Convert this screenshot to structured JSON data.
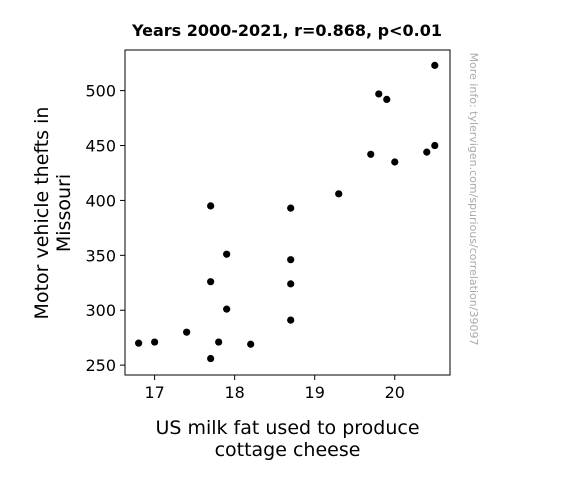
{
  "chart_data": {
    "type": "scatter",
    "title": "Years 2000-2021, r=0.868, p<0.01",
    "xlabel_lines": [
      "US milk fat used to produce",
      "cottage cheese"
    ],
    "ylabel_lines": [
      "Motor vehicle thefts in",
      "Missouri"
    ],
    "watermark": "More info: tylervigen.com/spurious/correlation/39097",
    "xlim": [
      16.63,
      20.69
    ],
    "ylim": [
      241,
      537
    ],
    "xticks": [
      17,
      18,
      19,
      20
    ],
    "yticks": [
      250,
      300,
      350,
      400,
      450,
      500
    ],
    "marker_color": "#000000",
    "points": [
      {
        "x": 16.8,
        "y": 270
      },
      {
        "x": 17.0,
        "y": 271
      },
      {
        "x": 17.4,
        "y": 280
      },
      {
        "x": 17.7,
        "y": 256
      },
      {
        "x": 17.7,
        "y": 326
      },
      {
        "x": 17.7,
        "y": 395
      },
      {
        "x": 17.8,
        "y": 271
      },
      {
        "x": 17.9,
        "y": 301
      },
      {
        "x": 17.9,
        "y": 351
      },
      {
        "x": 18.2,
        "y": 269
      },
      {
        "x": 18.7,
        "y": 291
      },
      {
        "x": 18.7,
        "y": 324
      },
      {
        "x": 18.7,
        "y": 346
      },
      {
        "x": 18.7,
        "y": 393
      },
      {
        "x": 19.3,
        "y": 406
      },
      {
        "x": 19.7,
        "y": 442
      },
      {
        "x": 19.8,
        "y": 497
      },
      {
        "x": 19.9,
        "y": 492
      },
      {
        "x": 20.0,
        "y": 435
      },
      {
        "x": 20.4,
        "y": 444
      },
      {
        "x": 20.5,
        "y": 450
      },
      {
        "x": 20.5,
        "y": 523
      }
    ]
  }
}
